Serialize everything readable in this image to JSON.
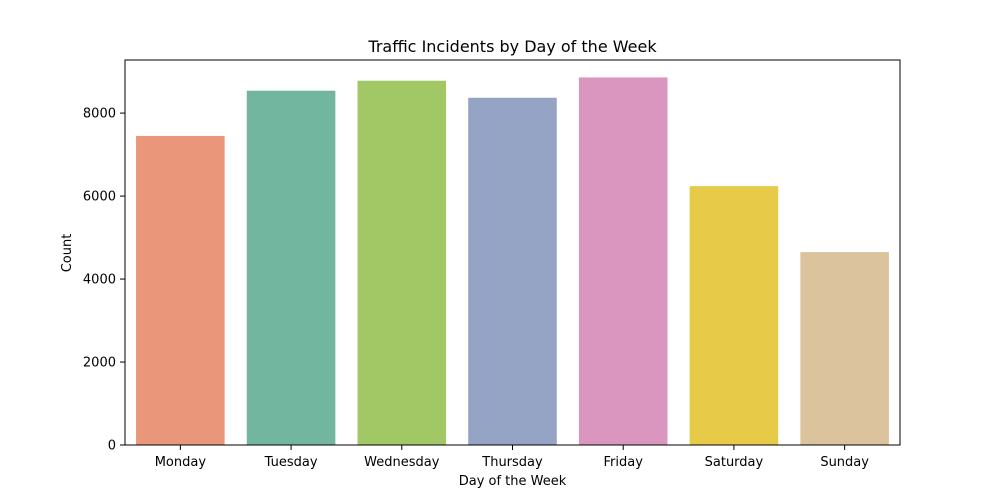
{
  "chart_data": {
    "type": "bar",
    "title": "Traffic Incidents by Day of the Week",
    "xlabel": "Day of the Week",
    "ylabel": "Count",
    "categories": [
      "Monday",
      "Tuesday",
      "Wednesday",
      "Thursday",
      "Friday",
      "Saturday",
      "Sunday"
    ],
    "values": [
      7450,
      8540,
      8780,
      8370,
      8860,
      6240,
      4650
    ],
    "colors": [
      "#e9967a",
      "#73b6a0",
      "#a2c866",
      "#95a3c4",
      "#db96c0",
      "#e6ca48",
      "#dbc39e"
    ],
    "ylim": [
      0,
      9280
    ],
    "yticks": [
      0,
      2000,
      4000,
      6000,
      8000
    ],
    "grid": false,
    "legend": "none"
  }
}
